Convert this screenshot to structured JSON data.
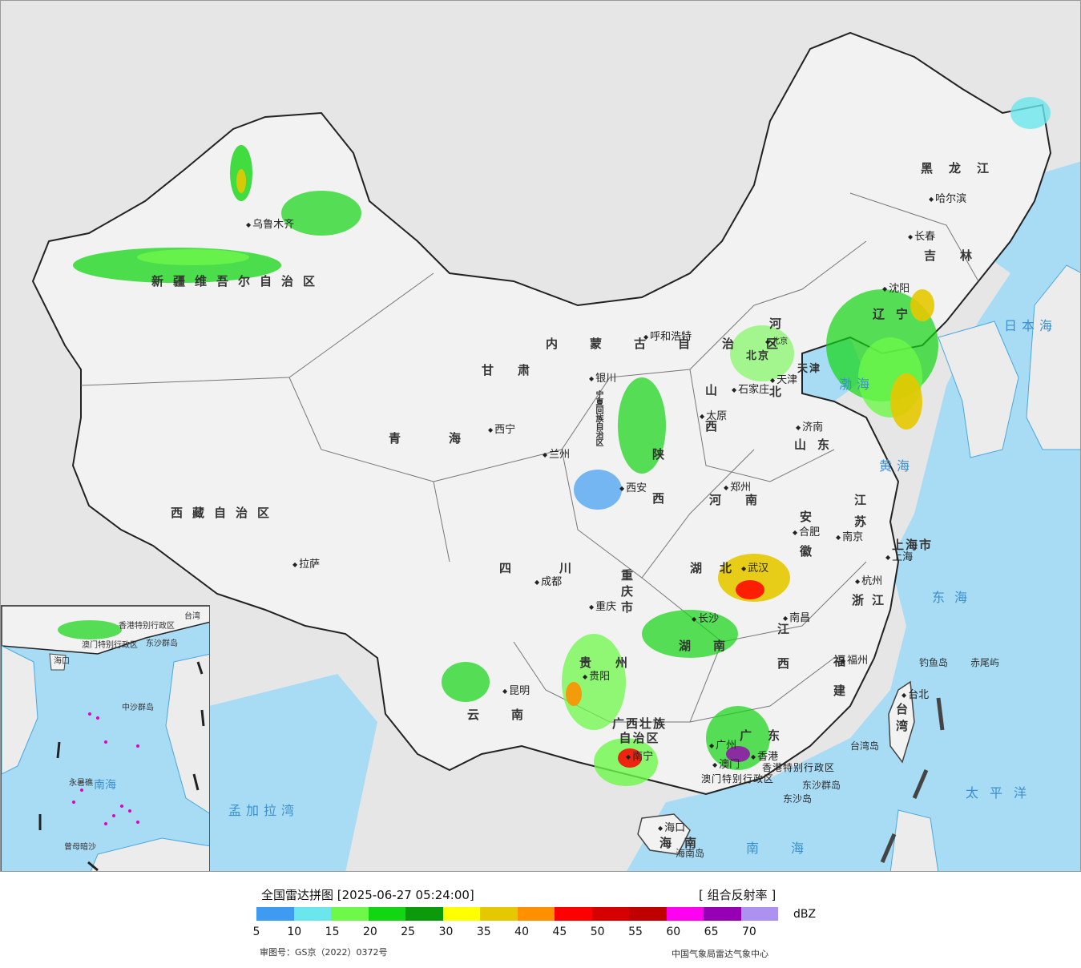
{
  "map": {
    "provinces": [
      {
        "name": "新疆维吾尔自治区"
      },
      {
        "name": "西藏自治区"
      },
      {
        "name": "青海"
      },
      {
        "name": "甘肃"
      },
      {
        "name": "内蒙古自治区"
      },
      {
        "name": "黑龙江"
      },
      {
        "name": "吉林"
      },
      {
        "name": "辽宁"
      },
      {
        "name": "河北"
      },
      {
        "name": "山西"
      },
      {
        "name": "陕西"
      },
      {
        "name": "山东"
      },
      {
        "name": "河南"
      },
      {
        "name": "江苏"
      },
      {
        "name": "安徽"
      },
      {
        "name": "浙江"
      },
      {
        "name": "江西"
      },
      {
        "name": "福建"
      },
      {
        "name": "湖北"
      },
      {
        "name": "湖南"
      },
      {
        "name": "四川"
      },
      {
        "name": "贵州"
      },
      {
        "name": "云南"
      },
      {
        "name": "广西壮族自治区"
      },
      {
        "name": "广东"
      },
      {
        "name": "海南"
      },
      {
        "name": "台湾"
      },
      {
        "name": "重庆市"
      },
      {
        "name": "宁夏回族自治区"
      },
      {
        "name": "上海市"
      },
      {
        "name": "天津"
      },
      {
        "name": "北京"
      }
    ],
    "cities": [
      {
        "name": "乌鲁木齐"
      },
      {
        "name": "拉萨"
      },
      {
        "name": "西宁"
      },
      {
        "name": "兰州"
      },
      {
        "name": "银川"
      },
      {
        "name": "呼和浩特"
      },
      {
        "name": "哈尔滨"
      },
      {
        "name": "长春"
      },
      {
        "name": "沈阳"
      },
      {
        "name": "北京"
      },
      {
        "name": "天津"
      },
      {
        "name": "石家庄"
      },
      {
        "name": "太原"
      },
      {
        "name": "济南"
      },
      {
        "name": "郑州"
      },
      {
        "name": "西安"
      },
      {
        "name": "合肥"
      },
      {
        "name": "南京"
      },
      {
        "name": "上海"
      },
      {
        "name": "杭州"
      },
      {
        "name": "武汉"
      },
      {
        "name": "长沙"
      },
      {
        "name": "南昌"
      },
      {
        "name": "福州"
      },
      {
        "name": "台北"
      },
      {
        "name": "成都"
      },
      {
        "name": "重庆"
      },
      {
        "name": "贵阳"
      },
      {
        "name": "昆明"
      },
      {
        "name": "南宁"
      },
      {
        "name": "广州"
      },
      {
        "name": "海口"
      },
      {
        "name": "澳门"
      },
      {
        "name": "香港"
      }
    ],
    "seas": [
      {
        "name": "日本海"
      },
      {
        "name": "渤海"
      },
      {
        "name": "黄海"
      },
      {
        "name": "东海"
      },
      {
        "name": "太平洋"
      },
      {
        "name": "南海"
      },
      {
        "name": "孟加拉湾"
      }
    ],
    "islands": [
      {
        "name": "钓鱼岛"
      },
      {
        "name": "赤尾屿"
      },
      {
        "name": "台湾岛"
      },
      {
        "name": "东沙群岛"
      },
      {
        "name": "东沙岛"
      },
      {
        "name": "海南岛"
      }
    ],
    "special_regions": [
      {
        "name": "香港特别行政区"
      },
      {
        "name": "澳门特别行政区"
      }
    ],
    "inset": {
      "labels": [
        "南海",
        "海口",
        "中沙群岛",
        "永暑礁",
        "曾母暗沙",
        "台湾",
        "东沙群岛",
        "香港特别行政区",
        "澳门特别行政区"
      ]
    }
  },
  "legend": {
    "title": "全国雷达拼图 [2025-06-27 05:24:00]",
    "product": "[ 组合反射率 ]",
    "unit": "dBZ",
    "colors": [
      "#3d9cf2",
      "#6ae6ec",
      "#6df84a",
      "#13d613",
      "#0a9a0a",
      "#ffff00",
      "#e6c800",
      "#ff9000",
      "#ff0000",
      "#d60000",
      "#c00000",
      "#ff00f0",
      "#9600b4",
      "#ac91f0"
    ],
    "ticks": [
      "5",
      "10",
      "15",
      "20",
      "25",
      "30",
      "35",
      "40",
      "45",
      "50",
      "55",
      "60",
      "65",
      "70"
    ],
    "approval": "审图号：GS京（2022）0372号",
    "source": "中国气象局雷达气象中心"
  }
}
